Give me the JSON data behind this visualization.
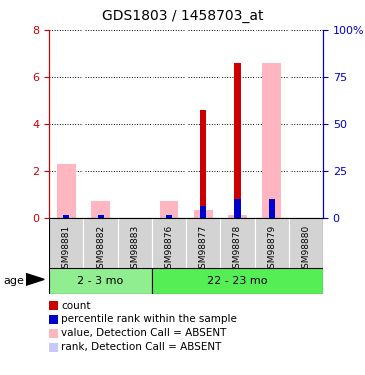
{
  "title": "GDS1803 / 1458703_at",
  "samples": [
    "GSM98881",
    "GSM98882",
    "GSM98883",
    "GSM98876",
    "GSM98877",
    "GSM98878",
    "GSM98879",
    "GSM98880"
  ],
  "groups": [
    "2 - 3 mo",
    "22 - 23 mo"
  ],
  "group_colors": [
    "#90EE90",
    "#55EE55"
  ],
  "group_sample_counts": [
    3,
    5
  ],
  "ylim_left": [
    0,
    8
  ],
  "ylim_right": [
    0,
    100
  ],
  "yticks_left": [
    0,
    2,
    4,
    6,
    8
  ],
  "yticks_right": [
    0,
    25,
    50,
    75,
    100
  ],
  "ytick_labels_right": [
    "0",
    "25",
    "50",
    "75",
    "100%"
  ],
  "red_bars": [
    0,
    0,
    0,
    0,
    4.6,
    6.6,
    0,
    0
  ],
  "pink_bars": [
    2.3,
    0.7,
    0,
    0.7,
    0.3,
    0.1,
    6.6,
    0
  ],
  "blue_bars": [
    0.09,
    0.09,
    0,
    0.09,
    0.5,
    0.8,
    0.8,
    0
  ],
  "light_blue_bars": [
    0.09,
    0.09,
    0,
    0.09,
    0.09,
    0.09,
    0.09,
    0
  ],
  "left_axis_color": "#cc0000",
  "right_axis_color": "#0000cc",
  "pink_color": "#ffb6c1",
  "light_blue_color": "#c8c8ff",
  "red_color": "#cc0000",
  "blue_color": "#0000cc",
  "gray_color": "#d3d3d3",
  "legend_labels": [
    "count",
    "percentile rank within the sample",
    "value, Detection Call = ABSENT",
    "rank, Detection Call = ABSENT"
  ],
  "legend_colors": [
    "#cc0000",
    "#0000cc",
    "#ffb6c1",
    "#c8c8ff"
  ]
}
